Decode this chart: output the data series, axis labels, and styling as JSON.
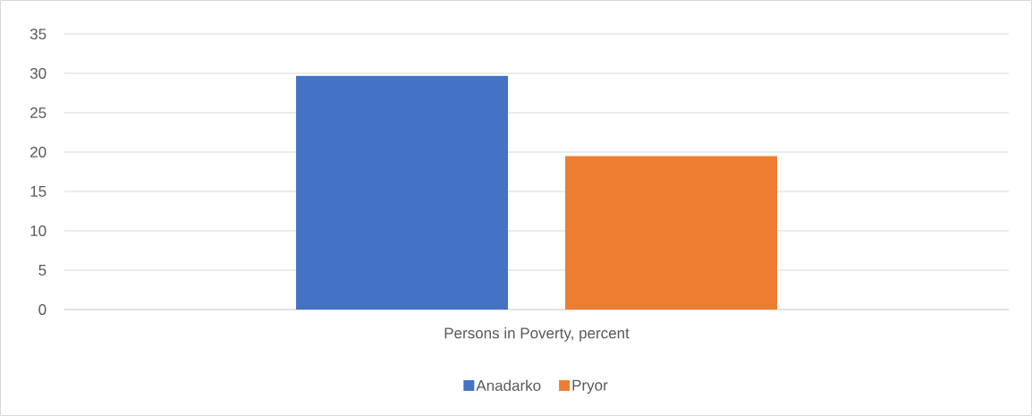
{
  "chart_data": {
    "type": "bar",
    "categories": [
      "Persons in Poverty, percent"
    ],
    "series": [
      {
        "name": "Anadarko",
        "color": "#4472c4",
        "values": [
          29.7
        ]
      },
      {
        "name": "Pryor",
        "color": "#ed7d31",
        "values": [
          19.5
        ]
      }
    ],
    "ylim": [
      0,
      35
    ],
    "yticks": [
      0,
      5,
      10,
      15,
      20,
      25,
      30,
      35
    ],
    "grid": "y",
    "legend": "bottom"
  }
}
